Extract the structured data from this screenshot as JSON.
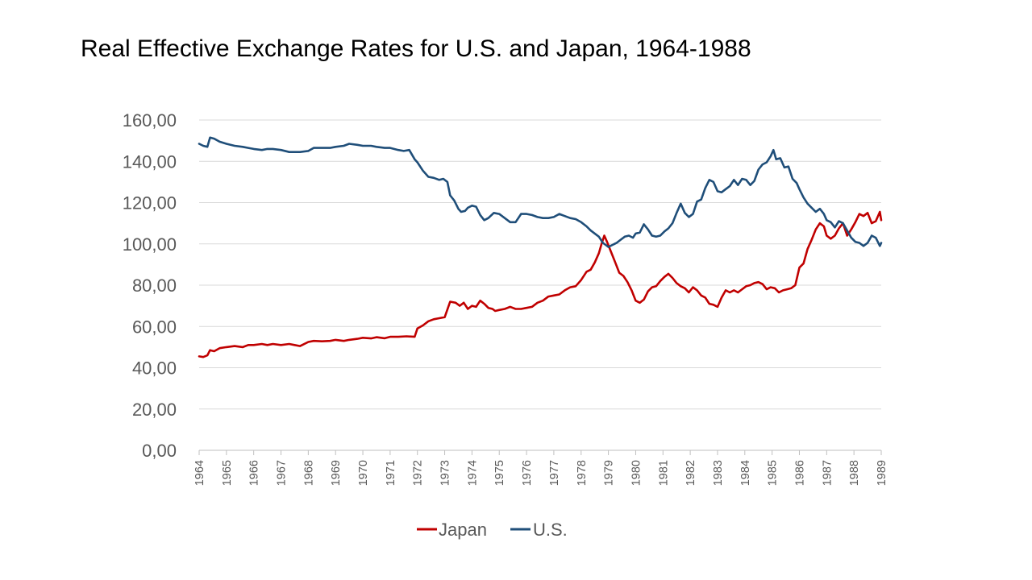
{
  "title": "Real Effective Exchange Rates for U.S. and Japan, 1964-1988",
  "chart_data": {
    "type": "line",
    "title": "Real Effective Exchange Rates for U.S. and Japan, 1964-1988",
    "xlabel": "",
    "ylabel": "",
    "xlim": [
      1964,
      1989
    ],
    "ylim": [
      0,
      160
    ],
    "y_ticks": [
      "0,00",
      "20,00",
      "40,00",
      "60,00",
      "80,00",
      "100,00",
      "120,00",
      "140,00",
      "160,00"
    ],
    "x_ticks": [
      "1964",
      "1965",
      "1966",
      "1967",
      "1968",
      "1969",
      "1970",
      "1971",
      "1972",
      "1973",
      "1974",
      "1975",
      "1976",
      "1977",
      "1978",
      "1979",
      "1980",
      "1981",
      "1982",
      "1983",
      "1984",
      "1985",
      "1986",
      "1987",
      "1988",
      "1989"
    ],
    "grid": true,
    "legend_position": "bottom",
    "series": [
      {
        "name": "Japan",
        "color": "#C00000",
        "points": [
          [
            1964.0,
            45.5
          ],
          [
            1964.15,
            45.2
          ],
          [
            1964.3,
            46.0
          ],
          [
            1964.4,
            48.5
          ],
          [
            1964.55,
            48.0
          ],
          [
            1964.75,
            49.5
          ],
          [
            1965.0,
            50.0
          ],
          [
            1965.3,
            50.5
          ],
          [
            1965.6,
            50.0
          ],
          [
            1965.8,
            51.0
          ],
          [
            1966.0,
            51.0
          ],
          [
            1966.3,
            51.5
          ],
          [
            1966.5,
            51.0
          ],
          [
            1966.7,
            51.5
          ],
          [
            1967.0,
            51.0
          ],
          [
            1967.3,
            51.5
          ],
          [
            1967.5,
            51.0
          ],
          [
            1967.7,
            50.5
          ],
          [
            1968.0,
            52.5
          ],
          [
            1968.2,
            53.0
          ],
          [
            1968.5,
            52.8
          ],
          [
            1968.8,
            53.0
          ],
          [
            1969.0,
            53.5
          ],
          [
            1969.3,
            53.0
          ],
          [
            1969.5,
            53.5
          ],
          [
            1969.8,
            54.0
          ],
          [
            1970.0,
            54.5
          ],
          [
            1970.3,
            54.2
          ],
          [
            1970.5,
            54.8
          ],
          [
            1970.8,
            54.3
          ],
          [
            1971.0,
            55.0
          ],
          [
            1971.3,
            55.0
          ],
          [
            1971.6,
            55.2
          ],
          [
            1971.9,
            55.0
          ],
          [
            1972.0,
            59.0
          ],
          [
            1972.2,
            60.5
          ],
          [
            1972.4,
            62.5
          ],
          [
            1972.6,
            63.5
          ],
          [
            1972.8,
            64.0
          ],
          [
            1973.0,
            64.5
          ],
          [
            1973.2,
            72.0
          ],
          [
            1973.4,
            71.5
          ],
          [
            1973.55,
            70.0
          ],
          [
            1973.7,
            71.5
          ],
          [
            1973.85,
            68.5
          ],
          [
            1974.0,
            70.0
          ],
          [
            1974.15,
            69.5
          ],
          [
            1974.3,
            72.5
          ],
          [
            1974.45,
            71.0
          ],
          [
            1974.6,
            69.0
          ],
          [
            1974.75,
            68.5
          ],
          [
            1974.85,
            67.5
          ],
          [
            1975.0,
            68.0
          ],
          [
            1975.2,
            68.5
          ],
          [
            1975.4,
            69.5
          ],
          [
            1975.6,
            68.5
          ],
          [
            1975.8,
            68.5
          ],
          [
            1976.0,
            69.0
          ],
          [
            1976.2,
            69.5
          ],
          [
            1976.4,
            71.5
          ],
          [
            1976.6,
            72.5
          ],
          [
            1976.8,
            74.5
          ],
          [
            1977.0,
            75.0
          ],
          [
            1977.2,
            75.5
          ],
          [
            1977.4,
            77.5
          ],
          [
            1977.6,
            79.0
          ],
          [
            1977.8,
            79.5
          ],
          [
            1978.0,
            82.5
          ],
          [
            1978.2,
            86.5
          ],
          [
            1978.35,
            87.5
          ],
          [
            1978.5,
            91.0
          ],
          [
            1978.65,
            95.5
          ],
          [
            1978.75,
            100.0
          ],
          [
            1978.85,
            104.0
          ],
          [
            1978.95,
            101.0
          ],
          [
            1979.1,
            96.0
          ],
          [
            1979.25,
            91.0
          ],
          [
            1979.4,
            86.0
          ],
          [
            1979.55,
            84.5
          ],
          [
            1979.7,
            81.5
          ],
          [
            1979.85,
            77.5
          ],
          [
            1980.0,
            72.5
          ],
          [
            1980.15,
            71.5
          ],
          [
            1980.3,
            73.0
          ],
          [
            1980.45,
            77.0
          ],
          [
            1980.6,
            79.0
          ],
          [
            1980.75,
            79.5
          ],
          [
            1980.9,
            82.0
          ],
          [
            1981.05,
            84.0
          ],
          [
            1981.2,
            85.5
          ],
          [
            1981.35,
            83.5
          ],
          [
            1981.5,
            81.0
          ],
          [
            1981.65,
            79.5
          ],
          [
            1981.8,
            78.5
          ],
          [
            1981.95,
            76.5
          ],
          [
            1982.1,
            79.0
          ],
          [
            1982.25,
            77.5
          ],
          [
            1982.4,
            75.0
          ],
          [
            1982.55,
            74.0
          ],
          [
            1982.7,
            71.0
          ],
          [
            1982.85,
            70.5
          ],
          [
            1983.0,
            69.5
          ],
          [
            1983.15,
            74.0
          ],
          [
            1983.3,
            77.5
          ],
          [
            1983.45,
            76.5
          ],
          [
            1983.6,
            77.5
          ],
          [
            1983.75,
            76.5
          ],
          [
            1983.9,
            78.0
          ],
          [
            1984.05,
            79.5
          ],
          [
            1984.2,
            80.0
          ],
          [
            1984.35,
            81.0
          ],
          [
            1984.5,
            81.5
          ],
          [
            1984.65,
            80.5
          ],
          [
            1984.8,
            78.0
          ],
          [
            1984.95,
            79.0
          ],
          [
            1985.1,
            78.5
          ],
          [
            1985.25,
            76.5
          ],
          [
            1985.4,
            77.5
          ],
          [
            1985.55,
            78.0
          ],
          [
            1985.7,
            78.5
          ],
          [
            1985.85,
            80.0
          ],
          [
            1986.0,
            88.5
          ],
          [
            1986.15,
            90.5
          ],
          [
            1986.3,
            97.5
          ],
          [
            1986.45,
            102.0
          ],
          [
            1986.6,
            107.0
          ],
          [
            1986.75,
            110.0
          ],
          [
            1986.9,
            108.5
          ],
          [
            1987.0,
            104.0
          ],
          [
            1987.15,
            102.5
          ],
          [
            1987.3,
            104.0
          ],
          [
            1987.45,
            107.5
          ],
          [
            1987.6,
            110.0
          ],
          [
            1987.75,
            104.0
          ],
          [
            1987.9,
            107.0
          ],
          [
            1988.05,
            110.5
          ],
          [
            1988.2,
            114.5
          ],
          [
            1988.35,
            113.5
          ],
          [
            1988.5,
            115.0
          ],
          [
            1988.65,
            110.0
          ],
          [
            1988.8,
            111.0
          ],
          [
            1988.95,
            115.5
          ],
          [
            1989.0,
            111.5
          ]
        ]
      },
      {
        "name": "U.S.",
        "color": "#1F4E79",
        "points": [
          [
            1964.0,
            148.5
          ],
          [
            1964.15,
            147.5
          ],
          [
            1964.3,
            147.0
          ],
          [
            1964.4,
            151.5
          ],
          [
            1964.55,
            151.0
          ],
          [
            1964.75,
            149.5
          ],
          [
            1965.0,
            148.5
          ],
          [
            1965.3,
            147.5
          ],
          [
            1965.6,
            147.0
          ],
          [
            1965.8,
            146.5
          ],
          [
            1966.0,
            146.0
          ],
          [
            1966.3,
            145.5
          ],
          [
            1966.5,
            146.0
          ],
          [
            1966.7,
            146.0
          ],
          [
            1967.0,
            145.5
          ],
          [
            1967.3,
            144.5
          ],
          [
            1967.5,
            144.5
          ],
          [
            1967.7,
            144.5
          ],
          [
            1968.0,
            145.0
          ],
          [
            1968.2,
            146.5
          ],
          [
            1968.5,
            146.5
          ],
          [
            1968.8,
            146.5
          ],
          [
            1969.0,
            147.0
          ],
          [
            1969.3,
            147.5
          ],
          [
            1969.5,
            148.5
          ],
          [
            1969.8,
            148.0
          ],
          [
            1970.0,
            147.5
          ],
          [
            1970.3,
            147.5
          ],
          [
            1970.5,
            147.0
          ],
          [
            1970.8,
            146.5
          ],
          [
            1971.0,
            146.5
          ],
          [
            1971.3,
            145.5
          ],
          [
            1971.5,
            145.0
          ],
          [
            1971.7,
            145.5
          ],
          [
            1971.9,
            141.0
          ],
          [
            1972.0,
            139.5
          ],
          [
            1972.2,
            135.5
          ],
          [
            1972.4,
            132.5
          ],
          [
            1972.6,
            132.0
          ],
          [
            1972.8,
            131.0
          ],
          [
            1972.95,
            131.5
          ],
          [
            1973.1,
            130.0
          ],
          [
            1973.2,
            123.5
          ],
          [
            1973.35,
            121.0
          ],
          [
            1973.5,
            117.0
          ],
          [
            1973.6,
            115.5
          ],
          [
            1973.75,
            116.0
          ],
          [
            1973.85,
            117.5
          ],
          [
            1974.0,
            118.5
          ],
          [
            1974.15,
            118.0
          ],
          [
            1974.3,
            114.0
          ],
          [
            1974.45,
            111.5
          ],
          [
            1974.6,
            112.5
          ],
          [
            1974.8,
            115.0
          ],
          [
            1975.0,
            114.5
          ],
          [
            1975.2,
            112.5
          ],
          [
            1975.4,
            110.5
          ],
          [
            1975.6,
            110.5
          ],
          [
            1975.8,
            114.5
          ],
          [
            1976.0,
            114.5
          ],
          [
            1976.2,
            114.0
          ],
          [
            1976.4,
            113.0
          ],
          [
            1976.6,
            112.5
          ],
          [
            1976.8,
            112.5
          ],
          [
            1977.0,
            113.0
          ],
          [
            1977.2,
            114.5
          ],
          [
            1977.4,
            113.5
          ],
          [
            1977.6,
            112.5
          ],
          [
            1977.8,
            112.0
          ],
          [
            1978.0,
            110.5
          ],
          [
            1978.2,
            108.5
          ],
          [
            1978.35,
            106.5
          ],
          [
            1978.5,
            105.0
          ],
          [
            1978.65,
            103.5
          ],
          [
            1978.8,
            100.5
          ],
          [
            1978.9,
            99.5
          ],
          [
            1979.0,
            98.5
          ],
          [
            1979.15,
            99.5
          ],
          [
            1979.3,
            100.5
          ],
          [
            1979.45,
            102.0
          ],
          [
            1979.6,
            103.5
          ],
          [
            1979.75,
            104.0
          ],
          [
            1979.9,
            103.0
          ],
          [
            1980.0,
            105.0
          ],
          [
            1980.15,
            105.5
          ],
          [
            1980.3,
            109.5
          ],
          [
            1980.45,
            107.0
          ],
          [
            1980.6,
            104.0
          ],
          [
            1980.75,
            103.5
          ],
          [
            1980.9,
            104.0
          ],
          [
            1981.05,
            106.0
          ],
          [
            1981.2,
            107.5
          ],
          [
            1981.35,
            110.0
          ],
          [
            1981.5,
            115.0
          ],
          [
            1981.65,
            119.5
          ],
          [
            1981.8,
            115.0
          ],
          [
            1981.95,
            113.0
          ],
          [
            1982.1,
            114.5
          ],
          [
            1982.25,
            120.5
          ],
          [
            1982.4,
            121.5
          ],
          [
            1982.55,
            127.0
          ],
          [
            1982.7,
            131.0
          ],
          [
            1982.85,
            130.0
          ],
          [
            1983.0,
            125.5
          ],
          [
            1983.15,
            125.0
          ],
          [
            1983.3,
            126.5
          ],
          [
            1983.45,
            128.0
          ],
          [
            1983.6,
            131.0
          ],
          [
            1983.75,
            128.5
          ],
          [
            1983.9,
            131.5
          ],
          [
            1984.05,
            131.0
          ],
          [
            1984.2,
            128.5
          ],
          [
            1984.35,
            130.5
          ],
          [
            1984.5,
            136.0
          ],
          [
            1984.65,
            138.5
          ],
          [
            1984.8,
            139.5
          ],
          [
            1984.95,
            142.5
          ],
          [
            1985.05,
            145.5
          ],
          [
            1985.15,
            141.0
          ],
          [
            1985.3,
            141.5
          ],
          [
            1985.45,
            137.0
          ],
          [
            1985.6,
            137.5
          ],
          [
            1985.75,
            131.5
          ],
          [
            1985.9,
            129.5
          ],
          [
            1986.0,
            126.5
          ],
          [
            1986.15,
            122.5
          ],
          [
            1986.3,
            119.5
          ],
          [
            1986.45,
            117.5
          ],
          [
            1986.6,
            115.5
          ],
          [
            1986.75,
            117.0
          ],
          [
            1986.9,
            114.5
          ],
          [
            1987.0,
            111.5
          ],
          [
            1987.15,
            110.5
          ],
          [
            1987.3,
            108.0
          ],
          [
            1987.45,
            111.0
          ],
          [
            1987.6,
            110.0
          ],
          [
            1987.75,
            106.5
          ],
          [
            1987.9,
            103.0
          ],
          [
            1988.05,
            101.0
          ],
          [
            1988.2,
            100.5
          ],
          [
            1988.35,
            99.0
          ],
          [
            1988.5,
            100.5
          ],
          [
            1988.65,
            104.0
          ],
          [
            1988.8,
            103.0
          ],
          [
            1988.95,
            99.0
          ],
          [
            1989.0,
            100.5
          ]
        ]
      }
    ]
  }
}
